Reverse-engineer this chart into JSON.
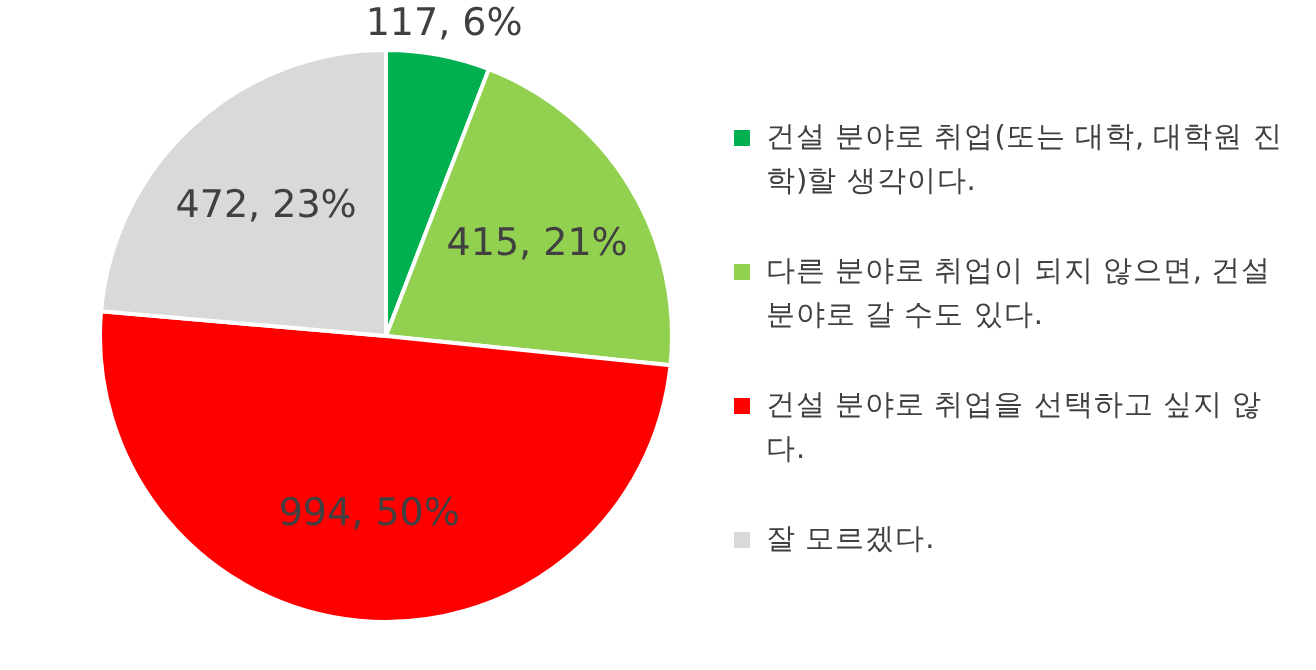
{
  "chart_data": {
    "type": "pie",
    "categories": [
      "건설 분야로 취업(또는 대학, 대학원 진학)할 생각이다.",
      "다른 분야로 취업이 되지 않으면, 건설 분야로 갈 수도 있다.",
      "건설 분야로 취업을 선택하고 싶지 않다.",
      "잘 모르겠다."
    ],
    "values": [
      117,
      415,
      994,
      472
    ],
    "colors": [
      "#00b050",
      "#92d050",
      "#ff0000",
      "#d9d9d9"
    ],
    "value_labels": [
      "117, 6%",
      "415, 21%",
      "994, 50%",
      "472, 23%"
    ],
    "legend": "right"
  }
}
